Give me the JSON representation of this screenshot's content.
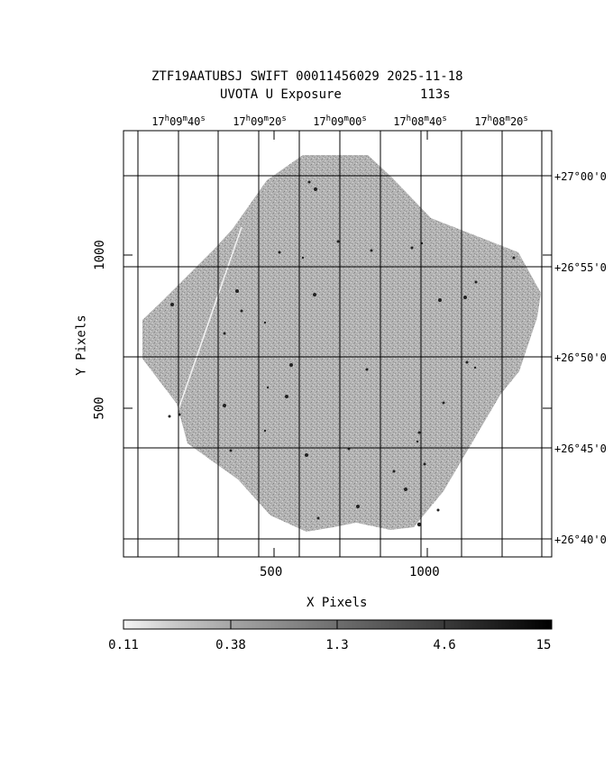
{
  "title": {
    "line1": "ZTF19AATUBSJ SWIFT 00011456029 2025-11-18",
    "line2_left": "UVOTA U Exposure",
    "line2_right": "113s"
  },
  "axes": {
    "xlabel": "X Pixels",
    "ylabel": "Y Pixels",
    "x_ticks": [
      "500",
      "1000"
    ],
    "y_ticks": [
      "500",
      "1000"
    ],
    "ra_ticks": [
      {
        "h": "17",
        "m": "09",
        "s": "40"
      },
      {
        "h": "17",
        "m": "09",
        "s": "20"
      },
      {
        "h": "17",
        "m": "09",
        "s": "00"
      },
      {
        "h": "17",
        "m": "08",
        "s": "40"
      },
      {
        "h": "17",
        "m": "08",
        "s": "20"
      }
    ],
    "dec_ticks": [
      "+27°00'0",
      "+26°55'0",
      "+26°50'0",
      "+26°45'0",
      "+26°40'0"
    ]
  },
  "colorbar": {
    "labels": [
      "0.11",
      "0.38",
      "1.3",
      "4.6",
      "15"
    ]
  },
  "colors": {
    "background": "#ffffff",
    "image_gray": "#a9a9a9",
    "frame": "#000000"
  }
}
